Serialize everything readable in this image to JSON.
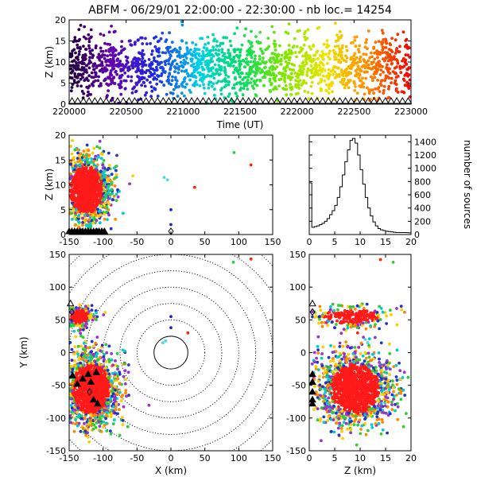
{
  "title": "ABFM - 06/29/01 22:00:00 - 22:30:00 - nb loc.=  14254",
  "panels": {
    "time_height": {
      "xlabel": "Time (UT)",
      "ylabel": "Z (km)",
      "xlim": [
        220000,
        223000
      ],
      "ylim": [
        0,
        20
      ],
      "xticks": [
        "220000",
        "220500",
        "221000",
        "221500",
        "222000",
        "222500",
        "223000"
      ],
      "yticks": [
        "0",
        "5",
        "10",
        "15",
        "20"
      ]
    },
    "xz": {
      "xlabel": "",
      "ylabel": "Z (km)",
      "xlim": [
        -150,
        150
      ],
      "ylim": [
        0,
        20
      ],
      "xticks": [
        "-150",
        "-100",
        "-50",
        "0",
        "50",
        "100",
        "150"
      ],
      "yticks": [
        "0",
        "5",
        "10",
        "15",
        "20"
      ]
    },
    "histogram": {
      "xlabel": "",
      "ylabel": "number of sources",
      "xlim": [
        0,
        20
      ],
      "ylim": [
        0,
        1500
      ],
      "xticks": [
        "0",
        "5",
        "10",
        "15",
        "20"
      ],
      "yticks": [
        "0",
        "200",
        "400",
        "600",
        "800",
        "1000",
        "1200",
        "1400"
      ]
    },
    "plan": {
      "xlabel": "X (km)",
      "ylabel": "Y (km)",
      "xlim": [
        -150,
        150
      ],
      "ylim": [
        -150,
        150
      ],
      "xticks": [
        "-150",
        "-100",
        "-50",
        "0",
        "50",
        "100",
        "150"
      ],
      "yticks": [
        "-150",
        "-100",
        "-50",
        "0",
        "50",
        "100",
        "150"
      ],
      "range_rings_km": [
        25,
        50,
        75,
        100,
        125,
        150,
        175,
        200
      ]
    },
    "zy": {
      "xlabel": "Z (km)",
      "ylabel": "",
      "xlim": [
        0,
        20
      ],
      "ylim": [
        -150,
        150
      ],
      "xticks": [
        "0",
        "5",
        "10",
        "15",
        "20"
      ],
      "yticks": [
        "-150",
        "-100",
        "-50",
        "0",
        "50",
        "100",
        "150"
      ]
    }
  },
  "chart_data": [
    {
      "type": "scatter",
      "name": "time-height",
      "x_units": "UT hhmmss",
      "y_units": "km",
      "xlim": [
        220000,
        223000
      ],
      "ylim": [
        0,
        20
      ],
      "color_by": "time (purple to red)",
      "clusters": [
        {
          "x_range": [
            220000,
            223000
          ],
          "y_center": 9,
          "y_spread": 3.5,
          "weight": 1.0
        }
      ]
    },
    {
      "type": "scatter",
      "name": "x-z",
      "x_units": "km",
      "y_units": "km",
      "xlim": [
        -150,
        150
      ],
      "ylim": [
        0,
        20
      ],
      "clusters": [
        {
          "x_center": -125,
          "x_spread": 18,
          "y_center": 9,
          "y_spread": 3.5
        }
      ],
      "isolated_points": [
        {
          "x": 93,
          "y": 16.5,
          "color": "#33cc33"
        },
        {
          "x": 118,
          "y": 14,
          "color": "#ff2200"
        },
        {
          "x": 35,
          "y": 9.5,
          "color": "#ff2200"
        },
        {
          "x": -10,
          "y": 11.5,
          "color": "#44dddd"
        },
        {
          "x": -5,
          "y": 11,
          "color": "#44dddd"
        },
        {
          "x": 0,
          "y": 5,
          "color": "#2222cc"
        },
        {
          "x": 0,
          "y": 2,
          "color": "#2222cc"
        }
      ]
    },
    {
      "type": "line",
      "name": "height-histogram",
      "x": [
        0,
        0.5,
        1,
        1.5,
        2,
        2.5,
        3,
        3.5,
        4,
        4.5,
        5,
        5.5,
        6,
        6.5,
        7,
        7.5,
        8,
        8.5,
        9,
        9.5,
        10,
        10.5,
        11,
        11.5,
        12,
        12.5,
        13,
        13.5,
        14,
        14.5,
        15,
        15.5,
        16,
        16.5,
        17,
        17.5,
        18,
        18.5,
        19,
        19.5,
        20
      ],
      "values": [
        780,
        110,
        120,
        130,
        150,
        170,
        200,
        240,
        300,
        360,
        440,
        560,
        720,
        900,
        1100,
        1280,
        1420,
        1450,
        1380,
        1200,
        980,
        760,
        560,
        400,
        280,
        190,
        130,
        90,
        70,
        60,
        50,
        45,
        40,
        35,
        30,
        30,
        30,
        30,
        28,
        25,
        25
      ],
      "xlim": [
        0,
        20
      ],
      "ylim": [
        0,
        1500
      ]
    },
    {
      "type": "scatter",
      "name": "plan-view",
      "x_units": "km",
      "y_units": "km",
      "xlim": [
        -150,
        150
      ],
      "ylim": [
        -150,
        150
      ],
      "clusters": [
        {
          "x_center": -118,
          "x_spread": 20,
          "y_center": -55,
          "y_spread": 28
        },
        {
          "x_center": -135,
          "x_spread": 10,
          "y_center": 55,
          "y_spread": 8
        }
      ],
      "isolated_points": [
        {
          "x": 118,
          "y": 143,
          "color": "#ff2200"
        },
        {
          "x": 92,
          "y": 138,
          "color": "#33cc33"
        },
        {
          "x": -12,
          "y": 15,
          "color": "#44dddd"
        },
        {
          "x": -8,
          "y": 18,
          "color": "#44dddd"
        },
        {
          "x": 25,
          "y": 30,
          "color": "#ff2200"
        },
        {
          "x": 0,
          "y": 38,
          "color": "#2222cc"
        },
        {
          "x": 0,
          "y": 55,
          "color": "#2222cc"
        }
      ],
      "stations": [
        {
          "x": -148,
          "y": 75,
          "marker": "triangle"
        },
        {
          "x": -146,
          "y": 62,
          "marker": "diamond"
        },
        {
          "x": -122,
          "y": -33,
          "marker": "triangle"
        },
        {
          "x": -118,
          "y": -45,
          "marker": "triangle"
        },
        {
          "x": -130,
          "y": -40,
          "marker": "triangle"
        },
        {
          "x": -110,
          "y": -30,
          "marker": "triangle"
        },
        {
          "x": -138,
          "y": -48,
          "marker": "triangle"
        },
        {
          "x": -145,
          "y": -35,
          "marker": "triangle"
        },
        {
          "x": -114,
          "y": -72,
          "marker": "triangle"
        },
        {
          "x": -108,
          "y": -78,
          "marker": "triangle"
        },
        {
          "x": -120,
          "y": -60,
          "marker": "diamond"
        }
      ]
    },
    {
      "type": "scatter",
      "name": "z-y",
      "x_units": "km",
      "y_units": "km",
      "xlim": [
        0,
        20
      ],
      "ylim": [
        -150,
        150
      ],
      "clusters": [
        {
          "x_center": 9,
          "x_spread": 3.5,
          "y_center": -55,
          "y_spread": 28
        },
        {
          "x_center": 8,
          "x_spread": 4,
          "y_center": 55,
          "y_spread": 8
        }
      ],
      "isolated_points": [
        {
          "x": 14,
          "y": 142,
          "color": "#ff2200"
        },
        {
          "x": 16.5,
          "y": 138,
          "color": "#33cc33"
        },
        {
          "x": 11.5,
          "y": 15,
          "color": "#44dddd"
        },
        {
          "x": 11,
          "y": 20,
          "color": "#44dddd"
        },
        {
          "x": 9.5,
          "y": 30,
          "color": "#ff2200"
        },
        {
          "x": 5,
          "y": 38,
          "color": "#2222cc"
        },
        {
          "x": 2,
          "y": 55,
          "color": "#2222cc"
        }
      ],
      "stations_at_x0": [
        75,
        62,
        -33,
        -45,
        -60,
        -72,
        -78
      ]
    }
  ]
}
